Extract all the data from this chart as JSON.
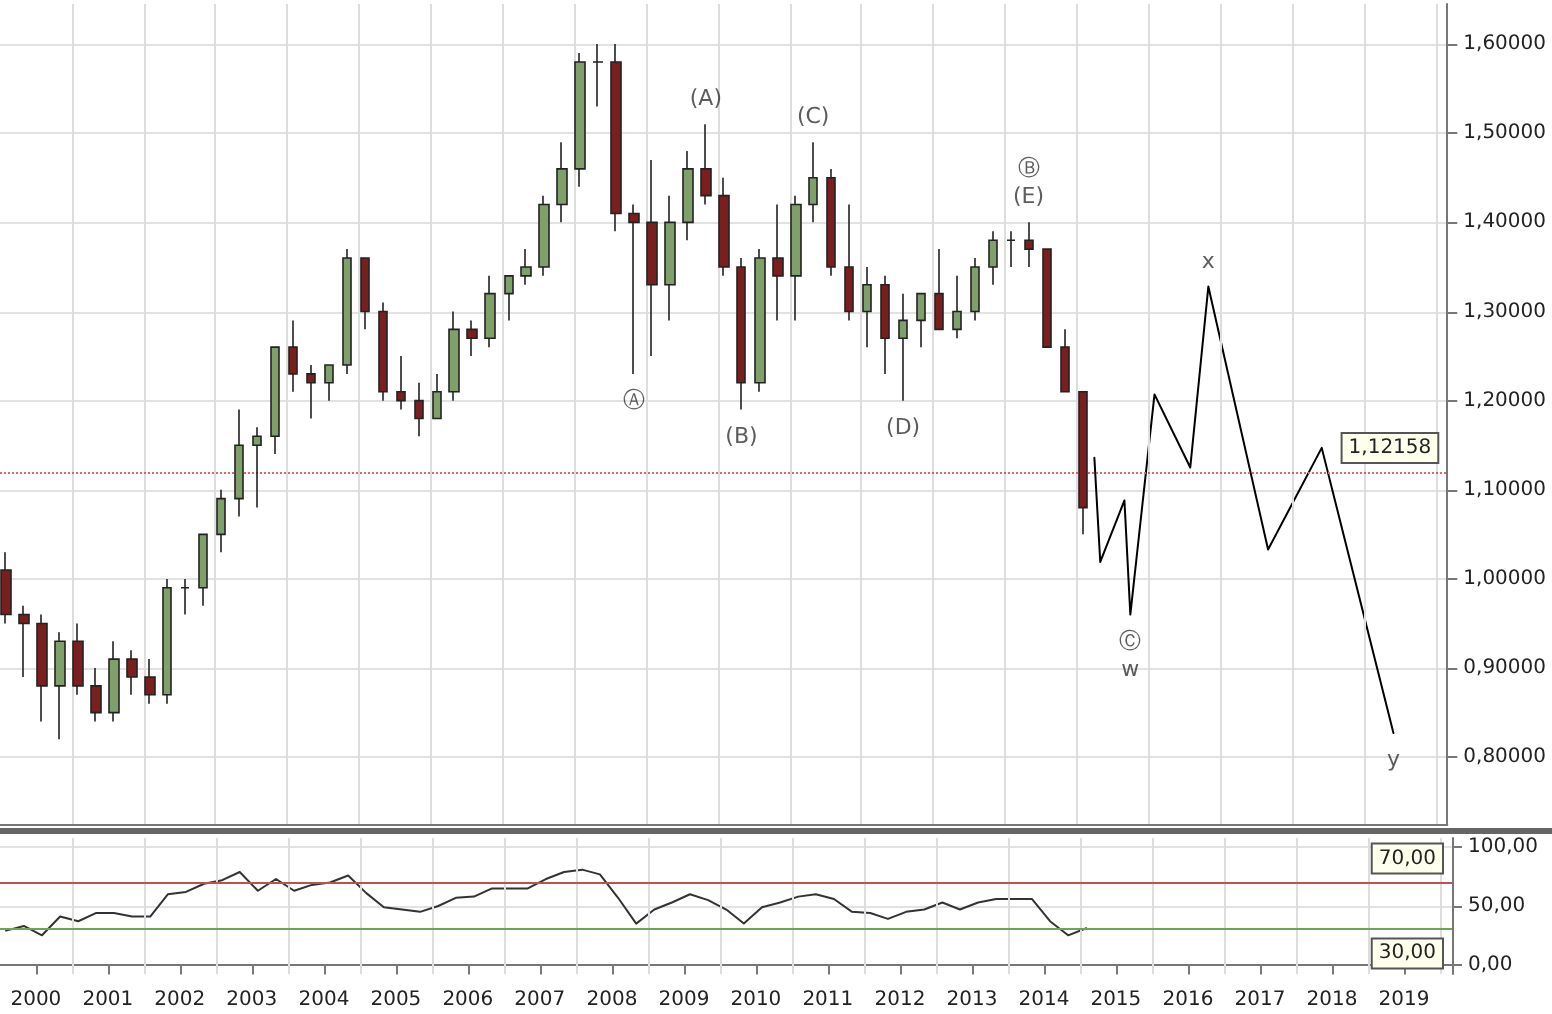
{
  "chart_data": [
    {
      "type": "candlestick",
      "xlim": [
        "2000-01",
        "2020-03"
      ],
      "ylim": [
        0.725,
        1.645
      ],
      "xticks": [
        {
          "value": "2001",
          "label": null
        },
        {
          "value": "2002",
          "label": null
        },
        {
          "value": "2003",
          "label": null
        },
        {
          "value": "2004",
          "label": null
        },
        {
          "value": "2005",
          "label": null
        },
        {
          "value": "2006",
          "label": null
        },
        {
          "value": "2007",
          "label": null
        },
        {
          "value": "2008",
          "label": null
        },
        {
          "value": "2009",
          "label": null
        },
        {
          "value": "2010",
          "label": null
        },
        {
          "value": "2011",
          "label": null
        },
        {
          "value": "2012",
          "label": null
        },
        {
          "value": "2013",
          "label": null
        },
        {
          "value": "2014",
          "label": null
        },
        {
          "value": "2015",
          "label": null
        },
        {
          "value": "2016",
          "label": null
        },
        {
          "value": "2017",
          "label": null
        },
        {
          "value": "2018",
          "label": null
        },
        {
          "value": "2019",
          "label": null
        },
        {
          "value": "2020",
          "label": null
        }
      ],
      "yticks": [
        {
          "value": 0.8,
          "label": "0,80000"
        },
        {
          "value": 0.9,
          "label": "0,90000"
        },
        {
          "value": 1.0,
          "label": "1,00000"
        },
        {
          "value": 1.1,
          "label": "1,10000"
        },
        {
          "value": 1.2,
          "label": "1,20000"
        },
        {
          "value": 1.3,
          "label": "1,30000"
        },
        {
          "value": 1.4,
          "label": "1,40000"
        },
        {
          "value": 1.5,
          "label": "1,50000"
        },
        {
          "value": 1.6,
          "label": "1,60000"
        }
      ],
      "tick_labels": "y",
      "grid": true,
      "marker": "none",
      "x": [
        "2000-02",
        "2000-05",
        "2000-08",
        "2000-11",
        "2001-02",
        "2001-05",
        "2001-08",
        "2001-11",
        "2002-02",
        "2002-05",
        "2002-08",
        "2002-11",
        "2003-02",
        "2003-05",
        "2003-08",
        "2003-11",
        "2004-02",
        "2004-05",
        "2004-08",
        "2004-11",
        "2005-02",
        "2005-05",
        "2005-08",
        "2005-11",
        "2006-02",
        "2006-05",
        "2006-08",
        "2006-11",
        "2007-02",
        "2007-05",
        "2007-08",
        "2007-11",
        "2008-02",
        "2008-05",
        "2008-08",
        "2008-11",
        "2009-02",
        "2009-05",
        "2009-08",
        "2009-11",
        "2010-02",
        "2010-05",
        "2010-08",
        "2010-11",
        "2011-02",
        "2011-05",
        "2011-08",
        "2011-11",
        "2012-02",
        "2012-05",
        "2012-08",
        "2012-11",
        "2013-02",
        "2013-05",
        "2013-08",
        "2013-11",
        "2014-02",
        "2014-05",
        "2014-08",
        "2014-11",
        "2015-02"
      ],
      "ohlc": [
        [
          1.01,
          1.03,
          0.95,
          0.96
        ],
        [
          0.96,
          0.97,
          0.89,
          0.95
        ],
        [
          0.95,
          0.96,
          0.84,
          0.88
        ],
        [
          0.88,
          0.94,
          0.82,
          0.93
        ],
        [
          0.93,
          0.95,
          0.87,
          0.88
        ],
        [
          0.88,
          0.9,
          0.84,
          0.85
        ],
        [
          0.85,
          0.93,
          0.84,
          0.91
        ],
        [
          0.91,
          0.92,
          0.87,
          0.89
        ],
        [
          0.89,
          0.91,
          0.86,
          0.87
        ],
        [
          0.87,
          1.0,
          0.86,
          0.99
        ],
        [
          0.99,
          1.0,
          0.96,
          0.99
        ],
        [
          0.99,
          1.05,
          0.97,
          1.05
        ],
        [
          1.05,
          1.1,
          1.03,
          1.09
        ],
        [
          1.09,
          1.19,
          1.07,
          1.15
        ],
        [
          1.15,
          1.17,
          1.08,
          1.16
        ],
        [
          1.16,
          1.26,
          1.14,
          1.26
        ],
        [
          1.26,
          1.29,
          1.21,
          1.23
        ],
        [
          1.23,
          1.24,
          1.18,
          1.22
        ],
        [
          1.22,
          1.24,
          1.2,
          1.24
        ],
        [
          1.24,
          1.37,
          1.23,
          1.36
        ],
        [
          1.36,
          1.36,
          1.28,
          1.3
        ],
        [
          1.3,
          1.31,
          1.2,
          1.21
        ],
        [
          1.21,
          1.25,
          1.19,
          1.2
        ],
        [
          1.2,
          1.22,
          1.16,
          1.18
        ],
        [
          1.18,
          1.23,
          1.18,
          1.21
        ],
        [
          1.21,
          1.3,
          1.2,
          1.28
        ],
        [
          1.28,
          1.29,
          1.25,
          1.27
        ],
        [
          1.27,
          1.34,
          1.26,
          1.32
        ],
        [
          1.32,
          1.34,
          1.29,
          1.34
        ],
        [
          1.34,
          1.37,
          1.33,
          1.35
        ],
        [
          1.35,
          1.43,
          1.34,
          1.42
        ],
        [
          1.42,
          1.49,
          1.4,
          1.46
        ],
        [
          1.46,
          1.59,
          1.44,
          1.58
        ],
        [
          1.58,
          1.6,
          1.53,
          1.58
        ],
        [
          1.58,
          1.6,
          1.39,
          1.41
        ],
        [
          1.41,
          1.42,
          1.23,
          1.4
        ],
        [
          1.4,
          1.47,
          1.25,
          1.33
        ],
        [
          1.33,
          1.43,
          1.29,
          1.4
        ],
        [
          1.4,
          1.48,
          1.38,
          1.46
        ],
        [
          1.46,
          1.51,
          1.42,
          1.43
        ],
        [
          1.43,
          1.45,
          1.34,
          1.35
        ],
        [
          1.35,
          1.36,
          1.19,
          1.22
        ],
        [
          1.22,
          1.37,
          1.21,
          1.36
        ],
        [
          1.36,
          1.42,
          1.29,
          1.34
        ],
        [
          1.34,
          1.43,
          1.29,
          1.42
        ],
        [
          1.42,
          1.49,
          1.4,
          1.45
        ],
        [
          1.45,
          1.46,
          1.34,
          1.35
        ],
        [
          1.35,
          1.42,
          1.29,
          1.3
        ],
        [
          1.3,
          1.35,
          1.26,
          1.33
        ],
        [
          1.33,
          1.34,
          1.23,
          1.27
        ],
        [
          1.27,
          1.32,
          1.2,
          1.29
        ],
        [
          1.29,
          1.32,
          1.26,
          1.32
        ],
        [
          1.32,
          1.37,
          1.28,
          1.28
        ],
        [
          1.28,
          1.34,
          1.27,
          1.3
        ],
        [
          1.3,
          1.36,
          1.29,
          1.35
        ],
        [
          1.35,
          1.39,
          1.33,
          1.38
        ],
        [
          1.38,
          1.39,
          1.35,
          1.38
        ],
        [
          1.38,
          1.4,
          1.35,
          1.37
        ],
        [
          1.37,
          1.37,
          1.26,
          1.26
        ],
        [
          1.26,
          1.28,
          1.21,
          1.21
        ],
        [
          1.21,
          1.21,
          1.05,
          1.08
        ]
      ],
      "series": [
        {
          "type": "line",
          "color": "#000000",
          "x": [
            "2015-04",
            "2015-05",
            "2015-09",
            "2015-10",
            "2016-02",
            "2016-08",
            "2016-11",
            "2017-09",
            "2018-06",
            "2019-06"
          ],
          "values": [
            1.136,
            1.019,
            1.088,
            0.96,
            1.207,
            1.125,
            1.328,
            1.033,
            1.147,
            0.827
          ]
        }
      ],
      "ref_lines": [
        {
          "axis": "y",
          "value": 1.12158,
          "label": "1,12158",
          "color": "#e06666",
          "line_style": "dotted"
        }
      ],
      "annotations": [
        {
          "text": "Ⓐ",
          "x": "2008-11",
          "y": 1.23
        },
        {
          "text": "(A)",
          "x": "2009-11",
          "y": 1.51
        },
        {
          "text": "(B)",
          "x": "2010-05",
          "y": 1.19
        },
        {
          "text": "(C)",
          "x": "2011-05",
          "y": 1.49
        },
        {
          "text": "(D)",
          "x": "2012-08",
          "y": 1.2
        },
        {
          "text": "Ⓑ\n(E)",
          "x": "2014-05",
          "y": 1.4
        },
        {
          "text": "Ⓒ\nw",
          "x": "2015-10",
          "y": 0.96
        },
        {
          "text": "x",
          "x": "2016-11",
          "y": 1.328
        },
        {
          "text": "y",
          "x": "2019-06",
          "y": 0.827
        }
      ]
    },
    {
      "type": "line",
      "xlim": [
        "2000-01",
        "2020-03"
      ],
      "ylim": [
        -8,
        108
      ],
      "xticks": [
        {
          "value": "2000-07",
          "label": "2000"
        },
        {
          "value": "2001-07",
          "label": "2001"
        },
        {
          "value": "2002-07",
          "label": "2002"
        },
        {
          "value": "2003-07",
          "label": "2003"
        },
        {
          "value": "2004-07",
          "label": "2004"
        },
        {
          "value": "2005-07",
          "label": "2005"
        },
        {
          "value": "2006-07",
          "label": "2006"
        },
        {
          "value": "2007-07",
          "label": "2007"
        },
        {
          "value": "2008-07",
          "label": "2008"
        },
        {
          "value": "2009-07",
          "label": "2009"
        },
        {
          "value": "2010-07",
          "label": "2010"
        },
        {
          "value": "2011-07",
          "label": "2011"
        },
        {
          "value": "2012-07",
          "label": "2012"
        },
        {
          "value": "2013-07",
          "label": "2013"
        },
        {
          "value": "2014-07",
          "label": "2014"
        },
        {
          "value": "2015-07",
          "label": "2015"
        },
        {
          "value": "2016-07",
          "label": "2016"
        },
        {
          "value": "2017-07",
          "label": "2017"
        },
        {
          "value": "2018-07",
          "label": "2018"
        },
        {
          "value": "2019-07",
          "label": "2019"
        },
        {
          "value": "2001",
          "label": null
        },
        {
          "value": "2002",
          "label": null
        },
        {
          "value": "2003",
          "label": null
        },
        {
          "value": "2004",
          "label": null
        },
        {
          "value": "2005",
          "label": null
        },
        {
          "value": "2006",
          "label": null
        },
        {
          "value": "2007",
          "label": null
        },
        {
          "value": "2008",
          "label": null
        },
        {
          "value": "2009",
          "label": null
        },
        {
          "value": "2010",
          "label": null
        },
        {
          "value": "2011",
          "label": null
        },
        {
          "value": "2012",
          "label": null
        },
        {
          "value": "2013",
          "label": null
        },
        {
          "value": "2014",
          "label": null
        },
        {
          "value": "2015",
          "label": null
        },
        {
          "value": "2016",
          "label": null
        },
        {
          "value": "2017",
          "label": null
        },
        {
          "value": "2018",
          "label": null
        },
        {
          "value": "2019",
          "label": null
        },
        {
          "value": "2020",
          "label": null
        }
      ],
      "yticks": [
        {
          "value": 0,
          "label": "0,00"
        },
        {
          "value": 50,
          "label": "50,00"
        },
        {
          "value": 100,
          "label": "100,00"
        }
      ],
      "grid": true,
      "marker": "none",
      "x": [
        "2000-02",
        "2000-05",
        "2000-08",
        "2000-11",
        "2001-02",
        "2001-05",
        "2001-08",
        "2001-11",
        "2002-02",
        "2002-05",
        "2002-08",
        "2002-11",
        "2003-02",
        "2003-05",
        "2003-08",
        "2003-11",
        "2004-02",
        "2004-05",
        "2004-08",
        "2004-11",
        "2005-02",
        "2005-05",
        "2005-08",
        "2005-11",
        "2006-02",
        "2006-05",
        "2006-08",
        "2006-11",
        "2007-02",
        "2007-05",
        "2007-08",
        "2007-11",
        "2008-02",
        "2008-05",
        "2008-08",
        "2008-11",
        "2009-02",
        "2009-05",
        "2009-08",
        "2009-11",
        "2010-02",
        "2010-05",
        "2010-08",
        "2010-11",
        "2011-02",
        "2011-05",
        "2011-08",
        "2011-11",
        "2012-02",
        "2012-05",
        "2012-08",
        "2012-11",
        "2013-02",
        "2013-05",
        "2013-08",
        "2013-11",
        "2014-02",
        "2014-05",
        "2014-08",
        "2014-11",
        "2015-02"
      ],
      "series": [
        {
          "color": "#333333",
          "values": [
            29,
            33,
            25,
            41,
            37,
            44,
            44,
            41,
            41,
            60,
            62,
            69,
            72,
            79,
            63,
            73,
            63,
            68,
            70,
            76,
            61,
            49,
            47,
            45,
            50,
            57,
            58,
            65,
            65,
            65,
            73,
            79,
            81,
            77,
            57,
            35,
            47,
            53,
            60,
            55,
            47,
            35,
            49,
            53,
            58,
            60,
            56,
            45,
            44,
            39,
            45,
            47,
            53,
            47,
            53,
            56,
            56,
            56,
            37,
            25,
            31
          ]
        }
      ],
      "ref_lines": [
        {
          "axis": "y",
          "value": 70,
          "label": "70,00",
          "color": "#c0504d",
          "line_style": "solid"
        },
        {
          "axis": "y",
          "value": 30,
          "label": "30,00",
          "color": "#6aa84f",
          "line_style": "solid"
        }
      ]
    }
  ]
}
